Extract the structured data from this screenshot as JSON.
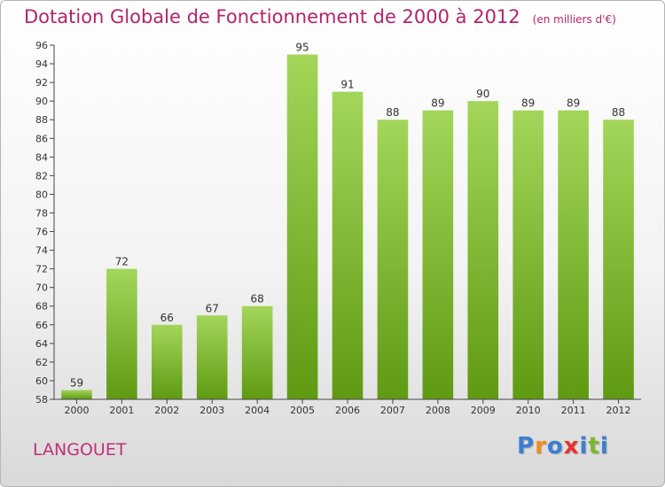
{
  "header": {
    "title": "Dotation Globale de Fonctionnement de 2000 à 2012",
    "subtitle": "(en milliers d'€)"
  },
  "footer": {
    "city": "LANGOUET",
    "logo": [
      "P",
      "r",
      "o",
      "x",
      "i",
      "t",
      "i"
    ]
  },
  "colors": {
    "title": "#b5236b",
    "bar_light": "#a3d65a",
    "bar_dark": "#5f9a12",
    "logo": [
      "#3b7fd0",
      "#f08c1e",
      "#3b7fd0",
      "#e8322d",
      "#3b7fd0",
      "#7cb82f",
      "#3b7fd0"
    ]
  },
  "chart_data": {
    "type": "bar",
    "title": "Dotation Globale de Fonctionnement de 2000 à 2012",
    "subtitle": "(en milliers d'€)",
    "xlabel": "",
    "ylabel": "",
    "categories": [
      "2000",
      "2001",
      "2002",
      "2003",
      "2004",
      "2005",
      "2006",
      "2007",
      "2008",
      "2009",
      "2010",
      "2011",
      "2012"
    ],
    "values": [
      59,
      72,
      66,
      67,
      68,
      95,
      91,
      88,
      89,
      90,
      89,
      89,
      88
    ],
    "ylim": [
      58,
      96
    ],
    "yticks": [
      58,
      60,
      62,
      64,
      66,
      68,
      70,
      72,
      74,
      76,
      78,
      80,
      82,
      84,
      86,
      88,
      90,
      92,
      94,
      96
    ],
    "grid": false,
    "legend": "none"
  }
}
